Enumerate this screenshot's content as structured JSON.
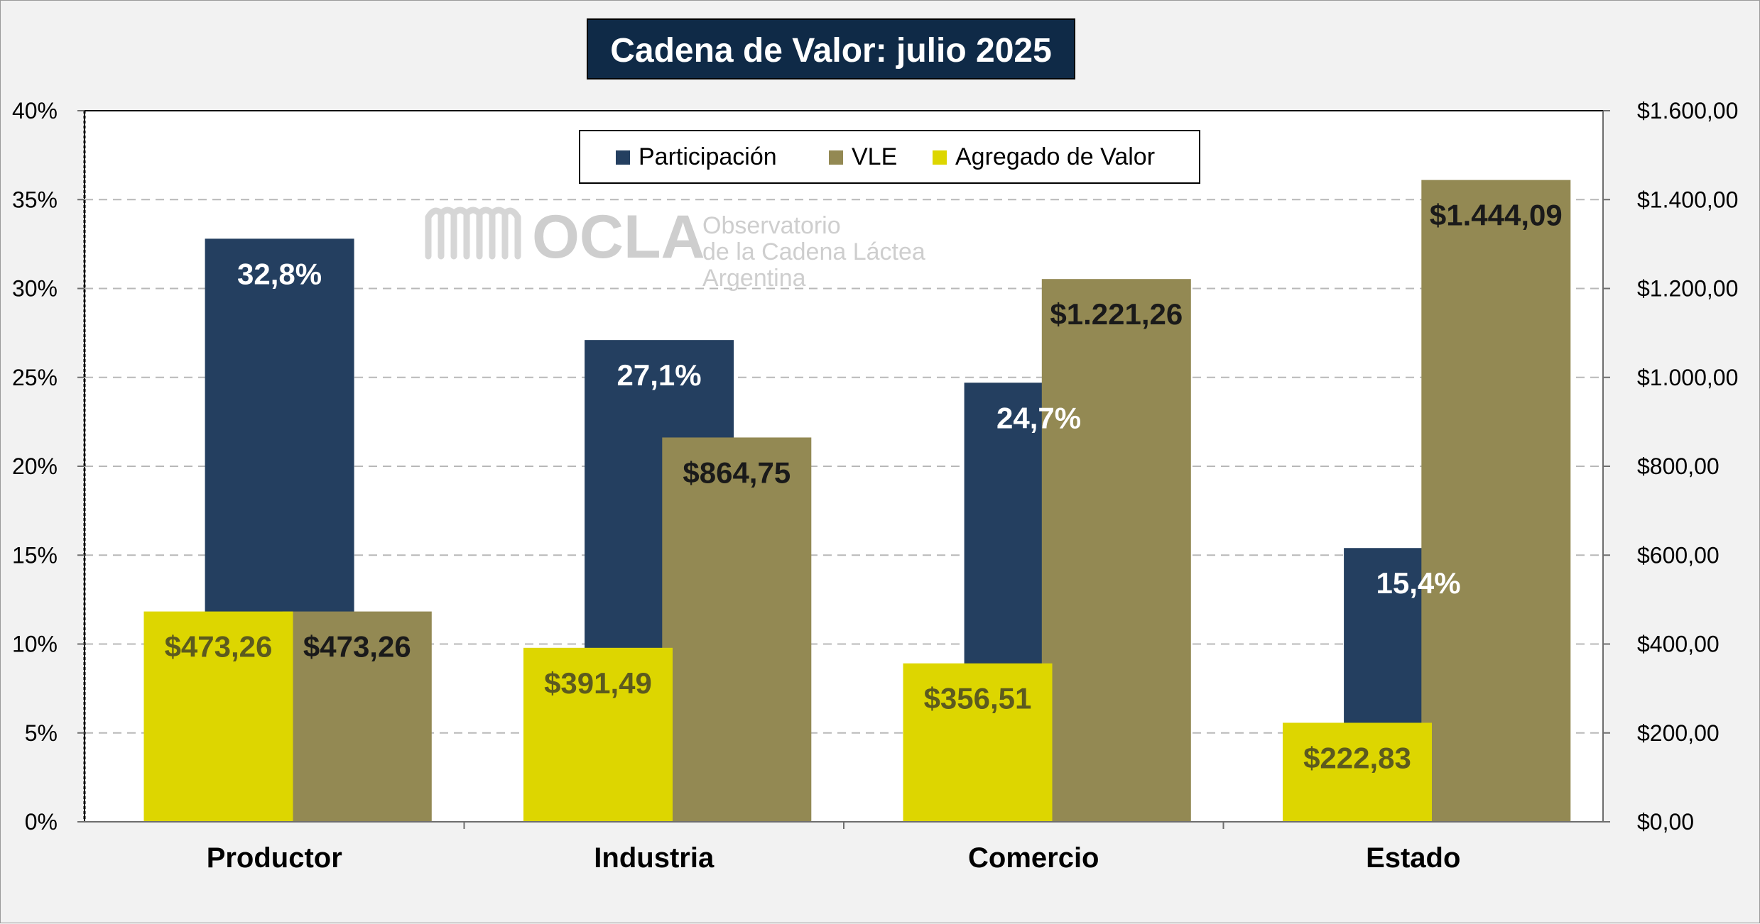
{
  "chart_data": {
    "type": "bar",
    "title": "Cadena de Valor: julio 2025",
    "categories": [
      "Productor",
      "Industria",
      "Comercio",
      "Estado"
    ],
    "y_left": {
      "ylim": [
        0,
        40
      ],
      "ticks": [
        0,
        5,
        10,
        15,
        20,
        25,
        30,
        35,
        40
      ],
      "tick_labels": [
        "0%",
        "5%",
        "10%",
        "15%",
        "20%",
        "25%",
        "30%",
        "35%",
        "40%"
      ]
    },
    "y_right": {
      "ylim": [
        0,
        1600
      ],
      "ticks": [
        0,
        200,
        400,
        600,
        800,
        1000,
        1200,
        1400,
        1600
      ],
      "tick_labels": [
        "$0,00",
        "$200,00",
        "$400,00",
        "$600,00",
        "$800,00",
        "$1.000,00",
        "$1.200,00",
        "$1.400,00",
        "$1.600,00"
      ]
    },
    "series": [
      {
        "name": "Participación",
        "axis": "left",
        "color": "#243f60",
        "values": [
          32.8,
          27.1,
          24.7,
          15.4
        ],
        "labels": [
          "32,8%",
          "27,1%",
          "24,7%",
          "15,4%"
        ],
        "label_color": "#ffffff"
      },
      {
        "name": "VLE",
        "axis": "right",
        "color": "#938953",
        "values": [
          473.26,
          864.75,
          1221.26,
          1444.09
        ],
        "labels": [
          "$473,26",
          "$864,75",
          "$1.221,26",
          "$1.444,09"
        ],
        "label_color": "#1a1a1a"
      },
      {
        "name": "Agregado de Valor",
        "axis": "right",
        "color": "#ddd600",
        "values": [
          473.26,
          391.49,
          356.51,
          222.83
        ],
        "labels": [
          "$473,26",
          "$391,49",
          "$356,51",
          "$222,83"
        ],
        "label_color": "#5c5a1f"
      }
    ],
    "grid": true,
    "legend": "top-center"
  },
  "watermark": {
    "logo": "OCLA",
    "line1": "Observatorio",
    "line2": "de la Cadena Láctea",
    "line3": "Argentina"
  }
}
